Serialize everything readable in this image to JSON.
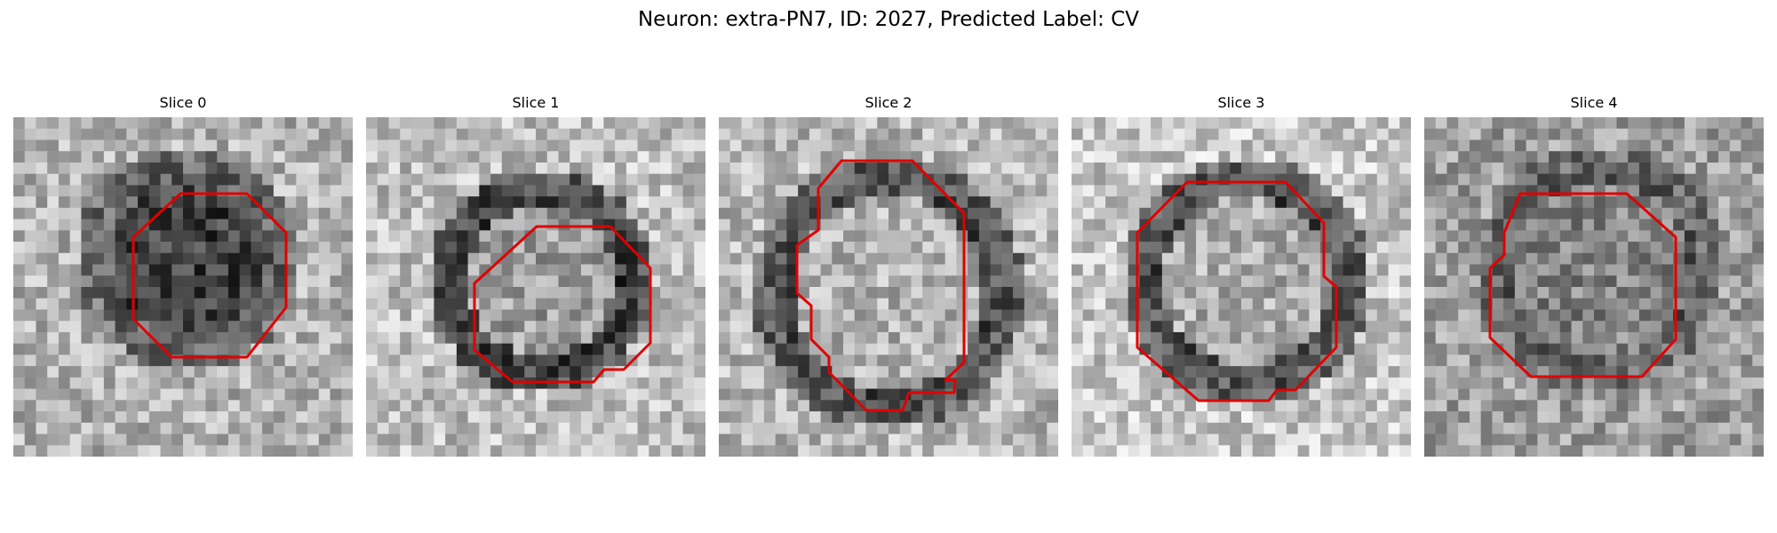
{
  "figure": {
    "title": "Neuron: extra-PN7, ID: 2027, Predicted Label: CV"
  },
  "panels": [
    {
      "title": "Slice 0"
    },
    {
      "title": "Slice 1"
    },
    {
      "title": "Slice 2"
    },
    {
      "title": "Slice 3"
    },
    {
      "title": "Slice 4"
    }
  ],
  "colors": {
    "contour": "#e00000",
    "background": "#ffffff"
  }
}
